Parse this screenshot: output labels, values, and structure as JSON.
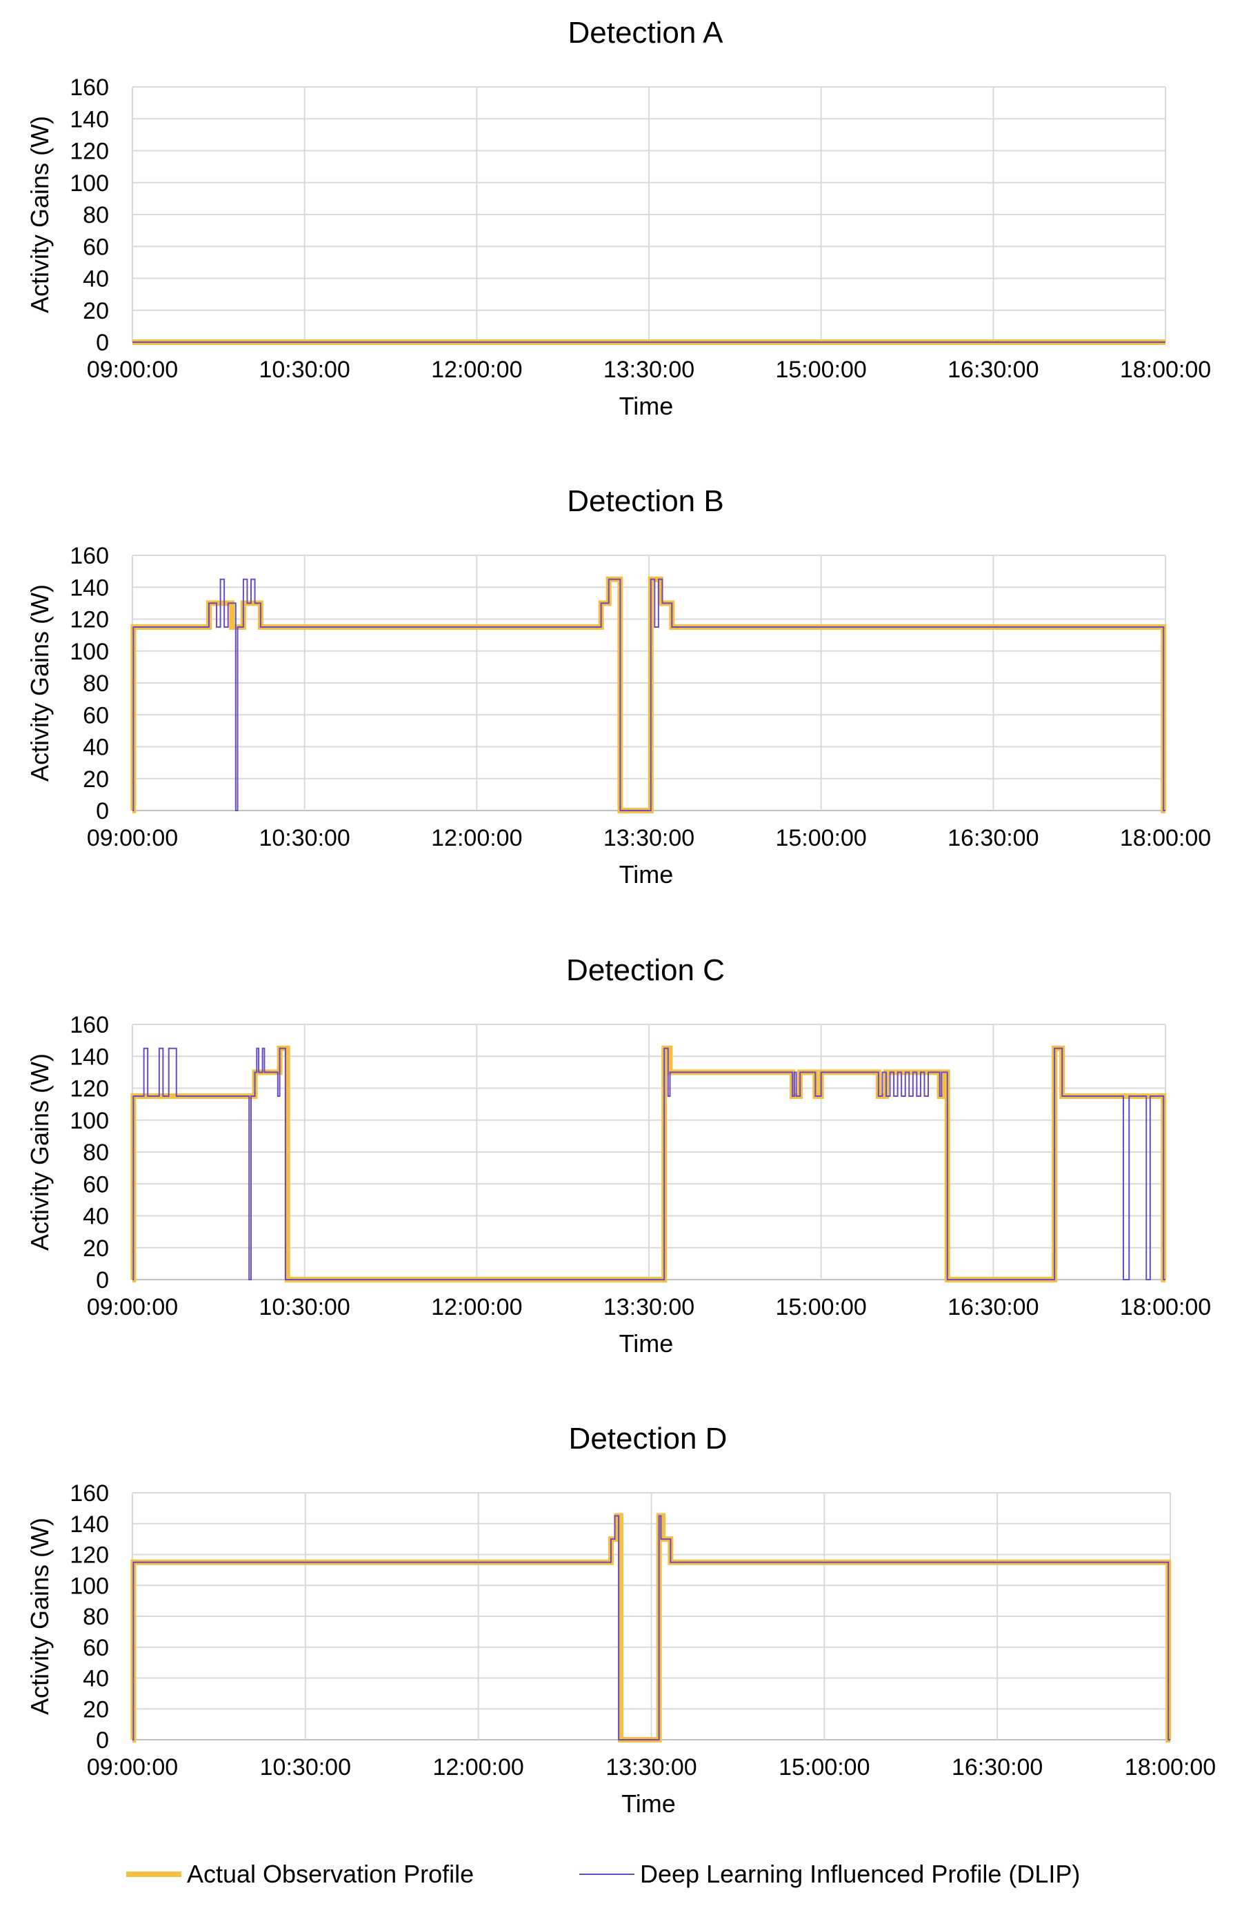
{
  "colors": {
    "actual": "#F5BF42",
    "dlip": "#6A4BC4",
    "grid": "#D9D9D9",
    "axis": "#BFBFBF"
  },
  "legend": {
    "actual_label": "Actual Observation Profile",
    "dlip_label": "Deep Learning Influenced Profile (DLIP)"
  },
  "chart_data": [
    {
      "type": "line",
      "title": "Detection A",
      "xlabel": "Time",
      "ylabel": "Activity Gains (W)",
      "xlim": [
        "09:00:00",
        "18:00:00"
      ],
      "ylim": [
        0,
        160
      ],
      "x_ticks": [
        "09:00:00",
        "10:30:00",
        "12:00:00",
        "13:30:00",
        "15:00:00",
        "16:30:00",
        "18:00:00"
      ],
      "y_ticks": [
        0,
        20,
        40,
        60,
        80,
        100,
        120,
        140,
        160
      ],
      "grid": true,
      "series": [
        {
          "name": "Actual Observation Profile",
          "step": true,
          "points": [
            [
              "09:00:00",
              0
            ],
            [
              "18:00:00",
              0
            ]
          ]
        },
        {
          "name": "Deep Learning Influenced Profile (DLIP)",
          "step": true,
          "points": [
            [
              "09:00:00",
              0
            ],
            [
              "18:00:00",
              0
            ]
          ]
        }
      ]
    },
    {
      "type": "line",
      "title": "Detection B",
      "xlabel": "Time",
      "ylabel": "Activity Gains (W)",
      "xlim": [
        "09:00:00",
        "18:00:00"
      ],
      "ylim": [
        0,
        160
      ],
      "x_ticks": [
        "09:00:00",
        "10:30:00",
        "12:00:00",
        "13:30:00",
        "15:00:00",
        "16:30:00",
        "18:00:00"
      ],
      "y_ticks": [
        0,
        20,
        40,
        60,
        80,
        100,
        120,
        140,
        160
      ],
      "grid": true,
      "series": [
        {
          "name": "Actual Observation Profile",
          "step": true,
          "points": [
            [
              "09:00:00",
              0
            ],
            [
              "09:00:30",
              115
            ],
            [
              "09:40:00",
              130
            ],
            [
              "09:52:00",
              115
            ],
            [
              "09:58:00",
              130
            ],
            [
              "10:07:00",
              115
            ],
            [
              "13:05:00",
              130
            ],
            [
              "13:09:00",
              145
            ],
            [
              "13:15:00",
              0
            ],
            [
              "13:31:00",
              145
            ],
            [
              "13:36:00",
              130
            ],
            [
              "13:42:00",
              115
            ],
            [
              "17:59:00",
              0
            ],
            [
              "18:00:00",
              0
            ]
          ]
        },
        {
          "name": "Deep Learning Influenced Profile (DLIP)",
          "step": true,
          "points": [
            [
              "09:00:00",
              0
            ],
            [
              "09:00:30",
              115
            ],
            [
              "09:40:00",
              130
            ],
            [
              "09:44:00",
              115
            ],
            [
              "09:46:00",
              145
            ],
            [
              "09:48:00",
              115
            ],
            [
              "09:50:00",
              130
            ],
            [
              "09:54:00",
              0
            ],
            [
              "09:55:00",
              115
            ],
            [
              "09:58:00",
              145
            ],
            [
              "10:00:00",
              130
            ],
            [
              "10:02:00",
              145
            ],
            [
              "10:04:00",
              130
            ],
            [
              "10:07:00",
              115
            ],
            [
              "13:05:00",
              130
            ],
            [
              "13:09:00",
              145
            ],
            [
              "13:15:00",
              0
            ],
            [
              "13:31:00",
              145
            ],
            [
              "13:33:00",
              115
            ],
            [
              "13:35:00",
              145
            ],
            [
              "13:37:00",
              130
            ],
            [
              "13:42:00",
              115
            ],
            [
              "17:59:00",
              0
            ],
            [
              "18:00:00",
              0
            ]
          ]
        }
      ]
    },
    {
      "type": "line",
      "title": "Detection C",
      "xlabel": "Time",
      "ylabel": "Activity Gains (W)",
      "xlim": [
        "09:00:00",
        "18:00:00"
      ],
      "ylim": [
        0,
        160
      ],
      "x_ticks": [
        "09:00:00",
        "10:30:00",
        "12:00:00",
        "13:30:00",
        "15:00:00",
        "16:30:00",
        "18:00:00"
      ],
      "y_ticks": [
        0,
        20,
        40,
        60,
        80,
        100,
        120,
        140,
        160
      ],
      "grid": true,
      "series": [
        {
          "name": "Actual Observation Profile",
          "step": true,
          "points": [
            [
              "09:00:00",
              0
            ],
            [
              "09:00:30",
              115
            ],
            [
              "10:04:00",
              130
            ],
            [
              "10:17:00",
              145
            ],
            [
              "10:21:00",
              0
            ],
            [
              "13:38:00",
              145
            ],
            [
              "13:41:00",
              130
            ],
            [
              "14:45:00",
              115
            ],
            [
              "14:49:00",
              130
            ],
            [
              "14:57:00",
              115
            ],
            [
              "15:00:00",
              130
            ],
            [
              "15:30:00",
              115
            ],
            [
              "15:34:00",
              130
            ],
            [
              "16:02:00",
              115
            ],
            [
              "16:05:00",
              130
            ],
            [
              "16:06:00",
              0
            ],
            [
              "16:40:00",
              0
            ],
            [
              "17:02:00",
              145
            ],
            [
              "17:06:00",
              115
            ],
            [
              "17:59:00",
              0
            ],
            [
              "18:00:00",
              0
            ]
          ]
        },
        {
          "name": "Deep Learning Influenced Profile (DLIP)",
          "step": true,
          "points": [
            [
              "09:00:00",
              0
            ],
            [
              "09:00:30",
              115
            ],
            [
              "09:06:00",
              145
            ],
            [
              "09:08:00",
              115
            ],
            [
              "09:14:00",
              145
            ],
            [
              "09:16:00",
              115
            ],
            [
              "09:19:00",
              145
            ],
            [
              "09:23:00",
              115
            ],
            [
              "10:01:00",
              0
            ],
            [
              "10:02:00",
              115
            ],
            [
              "10:04:00",
              130
            ],
            [
              "10:05:00",
              145
            ],
            [
              "10:06:00",
              130
            ],
            [
              "10:08:00",
              145
            ],
            [
              "10:09:00",
              130
            ],
            [
              "10:16:00",
              115
            ],
            [
              "10:17:00",
              145
            ],
            [
              "10:20:00",
              0
            ],
            [
              "13:38:00",
              145
            ],
            [
              "13:40:00",
              115
            ],
            [
              "13:41:00",
              130
            ],
            [
              "14:45:00",
              115
            ],
            [
              "14:46:00",
              130
            ],
            [
              "14:47:00",
              115
            ],
            [
              "14:49:00",
              130
            ],
            [
              "14:57:00",
              115
            ],
            [
              "15:00:00",
              130
            ],
            [
              "15:30:00",
              115
            ],
            [
              "15:32:00",
              130
            ],
            [
              "15:34:00",
              115
            ],
            [
              "15:36:00",
              130
            ],
            [
              "15:38:00",
              115
            ],
            [
              "15:40:00",
              130
            ],
            [
              "15:42:00",
              115
            ],
            [
              "15:44:00",
              130
            ],
            [
              "15:46:00",
              115
            ],
            [
              "15:48:00",
              130
            ],
            [
              "15:50:00",
              115
            ],
            [
              "15:52:00",
              130
            ],
            [
              "15:54:00",
              115
            ],
            [
              "15:56:00",
              130
            ],
            [
              "16:02:00",
              115
            ],
            [
              "16:03:00",
              130
            ],
            [
              "16:06:00",
              0
            ],
            [
              "16:40:00",
              0
            ],
            [
              "17:02:00",
              145
            ],
            [
              "17:06:00",
              115
            ],
            [
              "17:38:00",
              0
            ],
            [
              "17:41:00",
              115
            ],
            [
              "17:50:00",
              0
            ],
            [
              "17:52:00",
              115
            ],
            [
              "17:59:00",
              0
            ],
            [
              "18:00:00",
              0
            ]
          ]
        }
      ]
    },
    {
      "type": "line",
      "title": "Detection D",
      "xlabel": "Time",
      "ylabel": "Activity Gains (W)",
      "xlim": [
        "09:00:00",
        "18:00:00"
      ],
      "ylim": [
        0,
        160
      ],
      "x_ticks": [
        "09:00:00",
        "10:30:00",
        "12:00:00",
        "13:30:00",
        "15:00:00",
        "16:30:00",
        "18:00:00"
      ],
      "y_ticks": [
        0,
        20,
        40,
        60,
        80,
        100,
        120,
        140,
        160
      ],
      "grid": true,
      "series": [
        {
          "name": "Actual Observation Profile",
          "step": true,
          "points": [
            [
              "09:00:00",
              0
            ],
            [
              "09:00:30",
              115
            ],
            [
              "13:09:00",
              130
            ],
            [
              "13:12:00",
              145
            ],
            [
              "13:14:00",
              0
            ],
            [
              "13:34:00",
              145
            ],
            [
              "13:36:00",
              130
            ],
            [
              "13:40:00",
              115
            ],
            [
              "17:59:00",
              0
            ],
            [
              "18:00:00",
              0
            ]
          ]
        },
        {
          "name": "Deep Learning Influenced Profile (DLIP)",
          "step": true,
          "points": [
            [
              "09:00:00",
              0
            ],
            [
              "09:00:30",
              115
            ],
            [
              "13:09:00",
              130
            ],
            [
              "13:11:00",
              145
            ],
            [
              "13:13:00",
              0
            ],
            [
              "13:34:00",
              145
            ],
            [
              "13:35:00",
              130
            ],
            [
              "13:40:00",
              115
            ],
            [
              "17:59:00",
              0
            ],
            [
              "18:00:00",
              0
            ]
          ]
        }
      ]
    }
  ]
}
